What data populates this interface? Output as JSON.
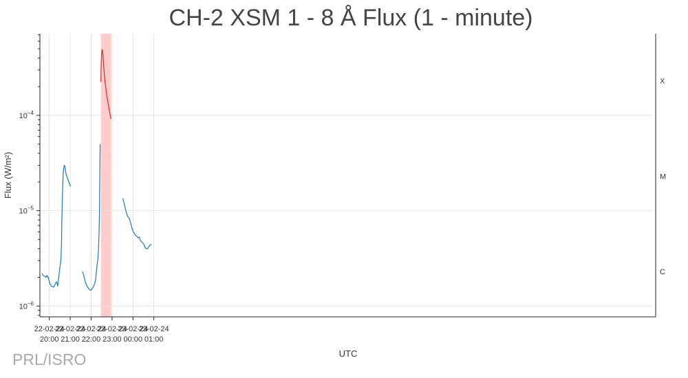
{
  "chart_data": {
    "type": "line",
    "title": "CH-2 XSM 1 - 8 Å Flux (1 - minute)",
    "xlabel": "UTC",
    "ylabel": "Flux (W/m²)",
    "y_scale": "log",
    "ylim": [
      7.7e-07,
      0.00072
    ],
    "xlim": [
      "2024-02-22 19:33",
      "2024-02-24 01:00"
    ],
    "grid": true,
    "x_ticks": [
      {
        "time": "2024-02-22 20:00",
        "date": "22-02-24",
        "clock": "20:00"
      },
      {
        "time": "2024-02-22 21:00",
        "date": "22-02-24",
        "clock": "21:00"
      },
      {
        "time": "2024-02-22 22:00",
        "date": "22-02-24",
        "clock": "22:00"
      },
      {
        "time": "2024-02-22 23:00",
        "date": "22-02-24",
        "clock": "23:00"
      },
      {
        "time": "2024-02-23 00:00",
        "date": "23-02-24",
        "clock": "00:00"
      },
      {
        "time": "2024-02-23 01:00",
        "date": "23-02-24",
        "clock": "01:00"
      }
    ],
    "y_ticks": [
      {
        "value": 1e-06,
        "base": "10",
        "exp": "−6"
      },
      {
        "value": 1e-05,
        "base": "10",
        "exp": "−5"
      },
      {
        "value": 0.0001,
        "base": "10",
        "exp": "−4"
      }
    ],
    "flare_classes": [
      {
        "label": "C",
        "level": 2.3e-06
      },
      {
        "label": "M",
        "level": 2.3e-05
      },
      {
        "label": "X",
        "level": 0.00023
      }
    ],
    "highlight": {
      "start": "2024-02-22 22:28",
      "end": "2024-02-22 22:57",
      "color": "#ffcccc"
    },
    "series": [
      {
        "color": "#1f77b4",
        "x": [
          "2024-02-22 19:39",
          "2024-02-22 19:42",
          "2024-02-22 19:47",
          "2024-02-22 19:50",
          "2024-02-22 19:53",
          "2024-02-22 19:55",
          "2024-02-22 19:57",
          "2024-02-22 20:00",
          "2024-02-22 20:02",
          "2024-02-22 20:05",
          "2024-02-22 20:07",
          "2024-02-22 20:10",
          "2024-02-22 20:13",
          "2024-02-22 20:15",
          "2024-02-22 20:17",
          "2024-02-22 20:20",
          "2024-02-22 20:22",
          "2024-02-22 20:24",
          "2024-02-22 20:27",
          "2024-02-22 20:30",
          "2024-02-22 20:33",
          "2024-02-22 20:35",
          "2024-02-22 20:36",
          "2024-02-22 20:38",
          "2024-02-22 20:40",
          "2024-02-22 20:42",
          "2024-02-22 20:43",
          "20240222 20:44",
          "2024-02-22 20:45",
          "2024-02-22 20:46",
          "2024-02-22 20:47",
          "2024-02-22 20:49",
          "2024-02-22 20:52",
          "2024-02-22 20:55",
          "2024-02-22 20:58",
          "2024-02-22 21:01"
        ],
        "y": [
          2.2e-06,
          2.1e-06,
          2.05e-06,
          2e-06,
          2.1e-06,
          2e-06,
          2e-06,
          1.8e-06,
          1.7e-06,
          1.65e-06,
          1.6e-06,
          1.6e-06,
          1.58e-06,
          1.65e-06,
          1.7e-06,
          1.8e-06,
          1.75e-06,
          1.62e-06,
          2e-06,
          2.5e-06,
          3e-06,
          4.5e-06,
          8e-06,
          1.6e-05,
          2.5e-05,
          2.9e-05,
          3e-05,
          2.95e-05,
          2.85e-05,
          2.7e-05,
          2.55e-05,
          2.35e-05,
          2.2e-05,
          2.05e-05,
          1.9e-05,
          1.8e-05
        ]
      },
      {
        "color": "#1f77b4",
        "x": [
          "2024-02-22 21:35",
          "2024-02-22 21:38",
          "2024-02-22 21:41",
          "2024-02-22 21:44",
          "2024-02-22 21:47",
          "2024-02-22 21:50",
          "2024-02-22 21:53",
          "2024-02-22 21:56",
          "2024-02-22 21:59",
          "2024-02-22 22:02",
          "2024-02-22 22:05",
          "2024-02-22 22:08",
          "2024-02-22 22:11",
          "2024-02-22 22:13",
          "2024-02-22 22:15",
          "2024-02-22 22:17",
          "2024-02-22 22:19",
          "2024-02-22 22:20",
          "2024-02-22 22:21",
          "2024-02-22 22:22",
          "2024-02-22 22:23",
          "2024-02-22 22:24",
          "2024-02-22 22:25",
          "2024-02-22 22:26"
        ],
        "y": [
          2.3e-06,
          2.15e-06,
          1.95e-06,
          1.75e-06,
          1.65e-06,
          1.58e-06,
          1.52e-06,
          1.48e-06,
          1.46e-06,
          1.5e-06,
          1.55e-06,
          1.65e-06,
          1.75e-06,
          1.9e-06,
          2.3e-06,
          2.7e-06,
          3e-06,
          3.4e-06,
          3.8e-06,
          4.8e-06,
          6.5e-06,
          9.5e-06,
          2.5e-05,
          5e-05
        ]
      },
      {
        "color": "#d62728",
        "x": [
          "2024-02-22 22:28",
          "2024-02-22 22:29",
          "2024-02-22 22:30",
          "2024-02-22 22:31",
          "2024-02-22 22:32",
          "2024-02-22 22:33",
          "2024-02-22 22:34",
          "2024-02-22 22:35",
          "2024-02-22 22:37",
          "2024-02-22 22:39",
          "2024-02-22 22:41",
          "2024-02-22 22:43",
          "2024-02-22 22:45",
          "2024-02-22 22:47",
          "2024-02-22 22:49",
          "2024-02-22 22:51",
          "2024-02-22 22:53",
          "2024-02-22 22:55",
          "2024-02-22 22:57"
        ],
        "y": [
          0.000225,
          0.00036,
          0.00044,
          0.00048,
          0.00049,
          0.00046,
          0.00042,
          0.00037,
          0.000295,
          0.00024,
          0.00021,
          0.000185,
          0.000162,
          0.000145,
          0.000132,
          0.00012,
          0.00011,
          0.0001,
          9.2e-05
        ]
      },
      {
        "color": "#1f77b4",
        "x": [
          "2024-02-22 23:31",
          "2024-02-22 23:35",
          "2024-02-22 23:39",
          "2024-02-22 23:42",
          "2024-02-22 23:45",
          "2024-02-22 23:48",
          "2024-02-22 23:51",
          "2024-02-22 23:54",
          "2024-02-22 23:57",
          "2024-02-23 00:00",
          "2024-02-23 00:04",
          "2024-02-23 00:08",
          "2024-02-23 00:12",
          "2024-02-23 00:15",
          "2024-02-23 00:18",
          "2024-02-23 00:20",
          "2024-02-23 00:24",
          "2024-02-23 00:28",
          "2024-02-23 00:32",
          "2024-02-23 00:35",
          "2024-02-23 00:38",
          "2024-02-23 00:42",
          "2024-02-23 00:45",
          "2024-02-23 00:48",
          "2024-02-23 00:50",
          "2024-02-23 00:53"
        ],
        "y": [
          1.35e-05,
          1.18e-05,
          1.02e-05,
          9.3e-06,
          8.7e-06,
          8.5e-06,
          8e-06,
          7.3e-06,
          6.6e-06,
          6.1e-06,
          5.8e-06,
          5.5e-06,
          5.35e-06,
          5.2e-06,
          5.3e-06,
          5e-06,
          4.75e-06,
          4.6e-06,
          4.4e-06,
          4.1e-06,
          4e-06,
          4e-06,
          4.15e-06,
          4.3e-06,
          4.4e-06,
          4.4e-06
        ]
      }
    ]
  },
  "watermark": "PRL/ISRO"
}
